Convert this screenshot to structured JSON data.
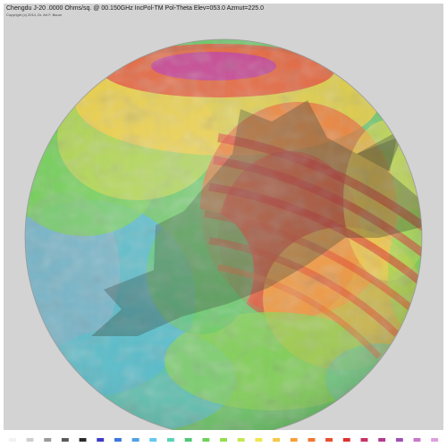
{
  "header": {
    "title": "Chengdu J-20 .0000 Ohms/sq. @ 00.150GHz IncPol-TM Pol-Theta Elev=053.0 Azmut=225.0",
    "copyright": "Copyright (c) 2014, Dr. Art F. Baum"
  },
  "colors": {
    "background": "#d3d3d3",
    "aircraft_silhouette": "#3a4a3a",
    "palette": [
      "#f2f2f2",
      "#cfcfcf",
      "#9a9a9a",
      "#5a5a5a",
      "#2a2a2a",
      "#3c3cc8",
      "#3c78dc",
      "#50a0e6",
      "#64c8f0",
      "#5ad2b4",
      "#50c878",
      "#6ed25a",
      "#96dc50",
      "#c8e650",
      "#f0e650",
      "#f5c846",
      "#f5a03c",
      "#f07832",
      "#e65032",
      "#dc3232",
      "#c83264",
      "#b43c8c",
      "#a050b4",
      "#c878c8",
      "#dca0dc"
    ]
  }
}
